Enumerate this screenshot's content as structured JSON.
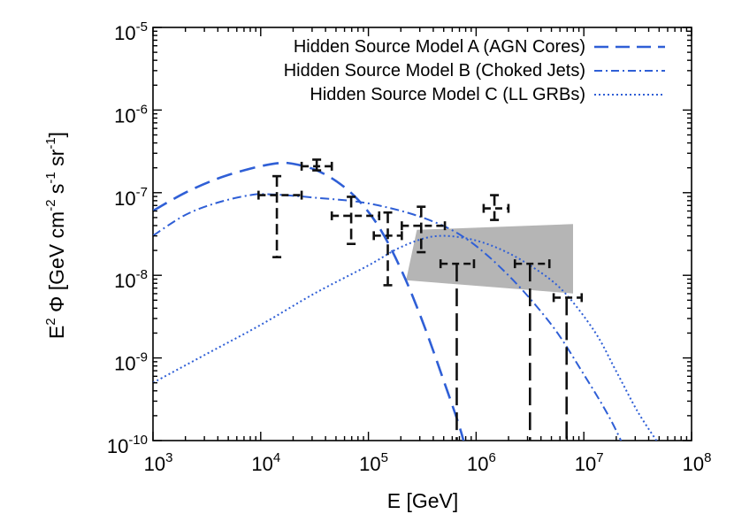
{
  "chart_data": {
    "type": "line",
    "x_scale": "log",
    "y_scale": "log",
    "xlim_exp": [
      3,
      8
    ],
    "ylim_exp": [
      -10,
      -5
    ],
    "x_ticks": [
      {
        "base": "10",
        "exp": "3",
        "value_exp": 3
      },
      {
        "base": "10",
        "exp": "4",
        "value_exp": 4
      },
      {
        "base": "10",
        "exp": "5",
        "value_exp": 5
      },
      {
        "base": "10",
        "exp": "6",
        "value_exp": 6
      },
      {
        "base": "10",
        "exp": "7",
        "value_exp": 7
      },
      {
        "base": "10",
        "exp": "8",
        "value_exp": 8
      }
    ],
    "y_ticks": [
      {
        "base": "10",
        "exp": "-10",
        "value_exp": -10
      },
      {
        "base": "10",
        "exp": "-9",
        "value_exp": -9
      },
      {
        "base": "10",
        "exp": "-8",
        "value_exp": -8
      },
      {
        "base": "10",
        "exp": "-7",
        "value_exp": -7
      },
      {
        "base": "10",
        "exp": "-6",
        "value_exp": -6
      },
      {
        "base": "10",
        "exp": "-5",
        "value_exp": -5
      }
    ],
    "xlabel": "E [GeV]",
    "ylabel": {
      "E": "E",
      "e_sup": "2",
      "phi": " Φ [GeV cm",
      "cm_sup": "-2",
      "s": " s",
      "s_sup": "-1",
      "sr": " sr",
      "sr_sup": "-1",
      "close": "]"
    },
    "series": [
      {
        "name": "Hidden Source Model A (AGN Cores)",
        "style": "dashed",
        "color": "#2f5fd6",
        "points_log": [
          [
            3.0,
            -7.22
          ],
          [
            3.3,
            -7.0
          ],
          [
            3.6,
            -6.83
          ],
          [
            3.9,
            -6.71
          ],
          [
            4.15,
            -6.645
          ],
          [
            4.3,
            -6.65
          ],
          [
            4.5,
            -6.72
          ],
          [
            4.7,
            -6.86
          ],
          [
            4.9,
            -7.08
          ],
          [
            5.1,
            -7.42
          ],
          [
            5.3,
            -7.92
          ],
          [
            5.5,
            -8.55
          ],
          [
            5.7,
            -9.28
          ],
          [
            5.85,
            -9.85
          ],
          [
            5.92,
            -10.2
          ]
        ]
      },
      {
        "name": "Hidden Source Model B (Choked Jets)",
        "style": "dashdot",
        "color": "#2f5fd6",
        "points_log": [
          [
            3.0,
            -7.52
          ],
          [
            3.3,
            -7.27
          ],
          [
            3.6,
            -7.12
          ],
          [
            3.9,
            -7.03
          ],
          [
            4.1,
            -7.02
          ],
          [
            4.5,
            -7.06
          ],
          [
            5.0,
            -7.13
          ],
          [
            5.5,
            -7.3
          ],
          [
            5.9,
            -7.55
          ],
          [
            6.3,
            -8.0
          ],
          [
            6.7,
            -8.6
          ],
          [
            7.0,
            -9.2
          ],
          [
            7.25,
            -9.75
          ],
          [
            7.45,
            -10.3
          ]
        ]
      },
      {
        "name": "Hidden Source Model C (LL GRBs)",
        "style": "dotted",
        "color": "#2f5fd6",
        "points_log": [
          [
            3.0,
            -9.3
          ],
          [
            3.5,
            -8.95
          ],
          [
            4.0,
            -8.6
          ],
          [
            4.5,
            -8.22
          ],
          [
            5.0,
            -7.88
          ],
          [
            5.3,
            -7.66
          ],
          [
            5.6,
            -7.53
          ],
          [
            5.9,
            -7.55
          ],
          [
            6.2,
            -7.67
          ],
          [
            6.5,
            -7.88
          ],
          [
            6.8,
            -8.18
          ],
          [
            7.1,
            -8.68
          ],
          [
            7.3,
            -9.16
          ],
          [
            7.5,
            -9.65
          ],
          [
            7.7,
            -10.05
          ]
        ]
      }
    ],
    "shaded_band": {
      "color": "#b5b5b5",
      "polygon_log": [
        [
          5.35,
          -8.06
        ],
        [
          5.45,
          -7.45
        ],
        [
          6.9,
          -7.38
        ],
        [
          6.9,
          -8.22
        ]
      ]
    },
    "data_points": [
      {
        "x_exp": 4.15,
        "x_lo_exp": 3.98,
        "x_hi_exp": 4.38,
        "y_exp": -7.03,
        "y_lo_exp": -7.78,
        "y_hi_exp": -6.8,
        "upper_limit": false
      },
      {
        "x_exp": 4.52,
        "x_lo_exp": 4.38,
        "x_hi_exp": 4.66,
        "y_exp": -6.68,
        "y_lo_exp": -6.73,
        "y_hi_exp": -6.6,
        "upper_limit": false
      },
      {
        "x_exp": 4.84,
        "x_lo_exp": 4.66,
        "x_hi_exp": 5.1,
        "y_exp": -7.28,
        "y_lo_exp": -7.62,
        "y_hi_exp": -7.05,
        "upper_limit": false
      },
      {
        "x_exp": 5.18,
        "x_lo_exp": 5.05,
        "x_hi_exp": 5.31,
        "y_exp": -7.52,
        "y_lo_exp": -8.12,
        "y_hi_exp": -7.24,
        "upper_limit": false
      },
      {
        "x_exp": 5.49,
        "x_lo_exp": 5.31,
        "x_hi_exp": 5.71,
        "y_exp": -7.4,
        "y_lo_exp": -7.72,
        "y_hi_exp": -7.17,
        "upper_limit": false
      },
      {
        "x_exp": 5.82,
        "x_lo_exp": 5.67,
        "x_hi_exp": 5.98,
        "y_exp": -7.86,
        "y_lo_exp": -10.0,
        "y_hi_exp": -7.86,
        "upper_limit": true
      },
      {
        "x_exp": 6.17,
        "x_lo_exp": 6.07,
        "x_hi_exp": 6.3,
        "y_exp": -7.19,
        "y_lo_exp": -7.33,
        "y_hi_exp": -7.03,
        "upper_limit": false
      },
      {
        "x_exp": 6.5,
        "x_lo_exp": 6.36,
        "x_hi_exp": 6.68,
        "y_exp": -7.86,
        "y_lo_exp": -10.0,
        "y_hi_exp": -7.86,
        "upper_limit": true
      },
      {
        "x_exp": 6.84,
        "x_lo_exp": 6.72,
        "x_hi_exp": 6.98,
        "y_exp": -8.27,
        "y_lo_exp": -10.0,
        "y_hi_exp": -8.27,
        "upper_limit": true
      }
    ],
    "legend_position": "top-right"
  }
}
